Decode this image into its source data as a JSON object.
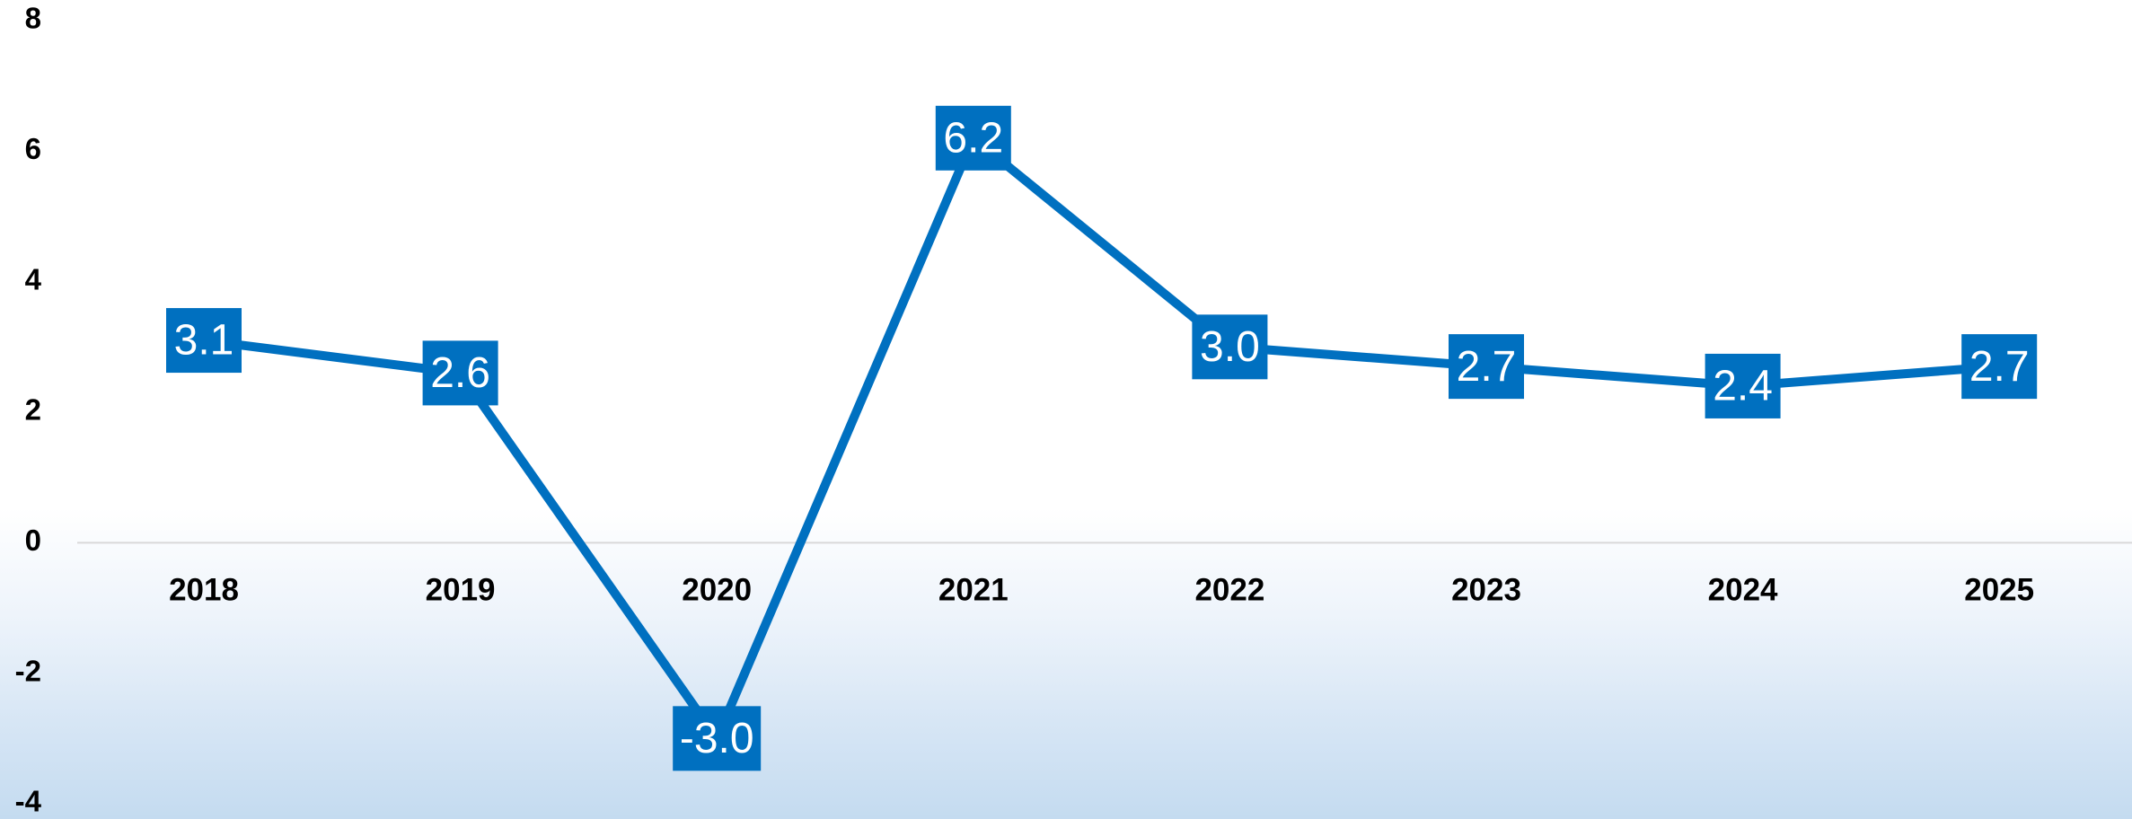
{
  "chart_data": {
    "type": "line",
    "categories": [
      "2018",
      "2019",
      "2020",
      "2021",
      "2022",
      "2023",
      "2024",
      "2025"
    ],
    "values": [
      3.1,
      2.6,
      -3.0,
      6.2,
      3.0,
      2.7,
      2.4,
      2.7
    ],
    "value_labels": [
      "3.1",
      "2.6",
      "-3.0",
      "6.2",
      "3.0",
      "2.7",
      "2.4",
      "2.7"
    ],
    "color": "#0070c0",
    "ylim": [
      -4,
      8
    ],
    "yticks": [
      -4,
      -2,
      0,
      2,
      4,
      6,
      8
    ],
    "grid": false
  }
}
